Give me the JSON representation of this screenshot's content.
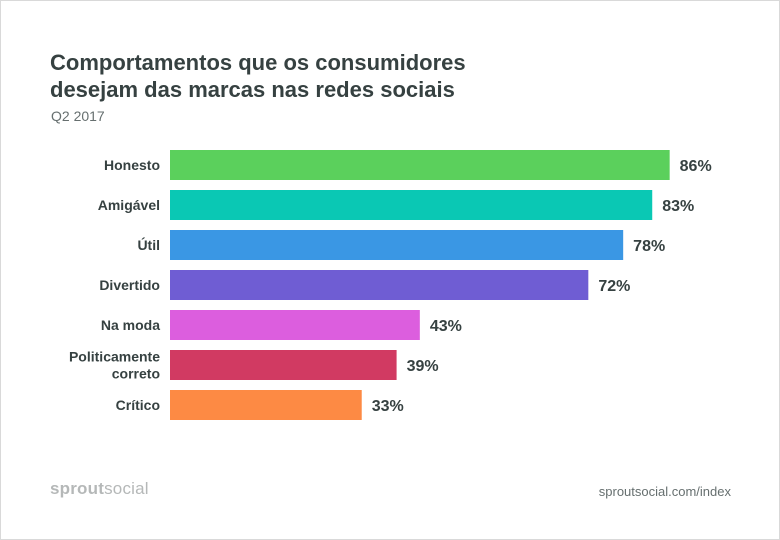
{
  "header": {
    "title_line1": "Comportamentos que os consumidores",
    "title_line2": "desejam das marcas nas redes sociais",
    "subtitle": "Q2 2017"
  },
  "footer": {
    "brand_bold": "sprout",
    "brand_regular": "social",
    "url": "sproutsocial.com/index"
  },
  "chart_data": {
    "type": "bar",
    "orientation": "horizontal",
    "title": "Comportamentos que os consumidores desejam das marcas nas redes sociais",
    "subtitle": "Q2 2017",
    "categories": [
      [
        "Honesto"
      ],
      [
        "Amigável"
      ],
      [
        "Útil"
      ],
      [
        "Divertido"
      ],
      [
        "Na moda"
      ],
      [
        "Politicamente",
        "correto"
      ],
      [
        "Crítico"
      ]
    ],
    "values": [
      86,
      83,
      78,
      72,
      43,
      39,
      33
    ],
    "value_labels": [
      "86%",
      "83%",
      "78%",
      "72%",
      "43%",
      "39%",
      "33%"
    ],
    "colors": [
      "#5bd05c",
      "#0ac8b4",
      "#3a97e4",
      "#6f5dd3",
      "#dc5ede",
      "#d13a62",
      "#fd8a44"
    ],
    "xlim": [
      0,
      100
    ],
    "grid": false,
    "legend": "none"
  }
}
